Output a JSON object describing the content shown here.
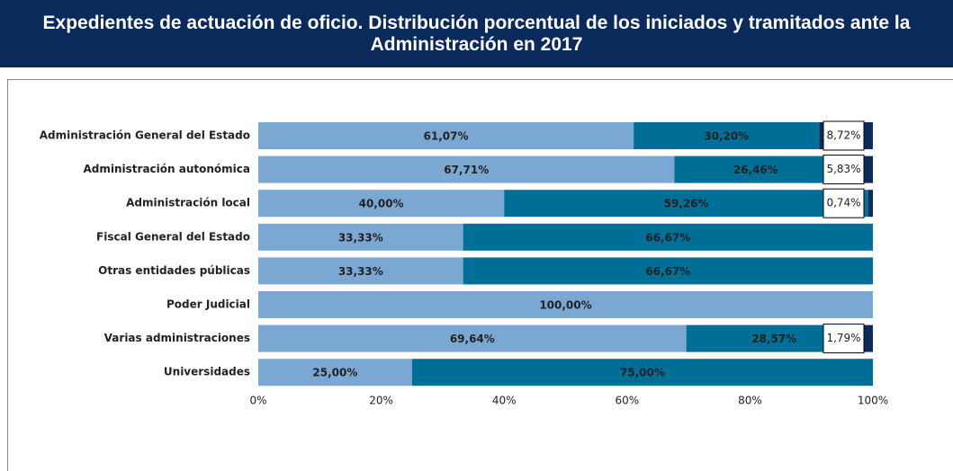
{
  "chart_data": {
    "type": "stacked_barh",
    "title": "Expedientes de actuación de oficio. Distribución porcentual de los iniciados y tramitados ante la Administración en 2017",
    "categories": [
      "Administración General del Estado",
      "Administración autonómica",
      "Administración local",
      "Fiscal General del Estado",
      "Otras entidades públicas",
      "Poder Judicial",
      "Varias administraciones",
      "Universidades"
    ],
    "series": [
      {
        "color": "#7ba7d3",
        "values": [
          61.07,
          67.71,
          40.0,
          33.33,
          33.33,
          100.0,
          69.64,
          25.0
        ],
        "value_labels": [
          "61,07%",
          "67,71%",
          "40,00%",
          "33,33%",
          "33,33%",
          "100,00%",
          "69,64%",
          "25,00%"
        ]
      },
      {
        "color": "#006f98",
        "values": [
          30.2,
          26.46,
          59.26,
          66.67,
          66.67,
          null,
          28.57,
          75.0
        ],
        "value_labels": [
          "30,20%",
          "26,46%",
          "59,26%",
          "66,67%",
          "66,67%",
          null,
          "28,57%",
          "75,00%"
        ]
      },
      {
        "color": "#0b2b5c",
        "values": [
          8.72,
          5.83,
          0.74,
          null,
          null,
          null,
          1.79,
          null
        ],
        "value_labels": [
          "8,72%",
          "5,83%",
          "0,74%",
          null,
          null,
          null,
          "1,79%",
          null
        ]
      }
    ],
    "xlim": [
      0,
      100
    ],
    "xticks": [
      {
        "value": 0,
        "label": "0%"
      },
      {
        "value": 20,
        "label": "20%"
      },
      {
        "value": 40,
        "label": "40%"
      },
      {
        "value": 60,
        "label": "60%"
      },
      {
        "value": 80,
        "label": "80%"
      },
      {
        "value": 100,
        "label": "100%"
      }
    ]
  }
}
